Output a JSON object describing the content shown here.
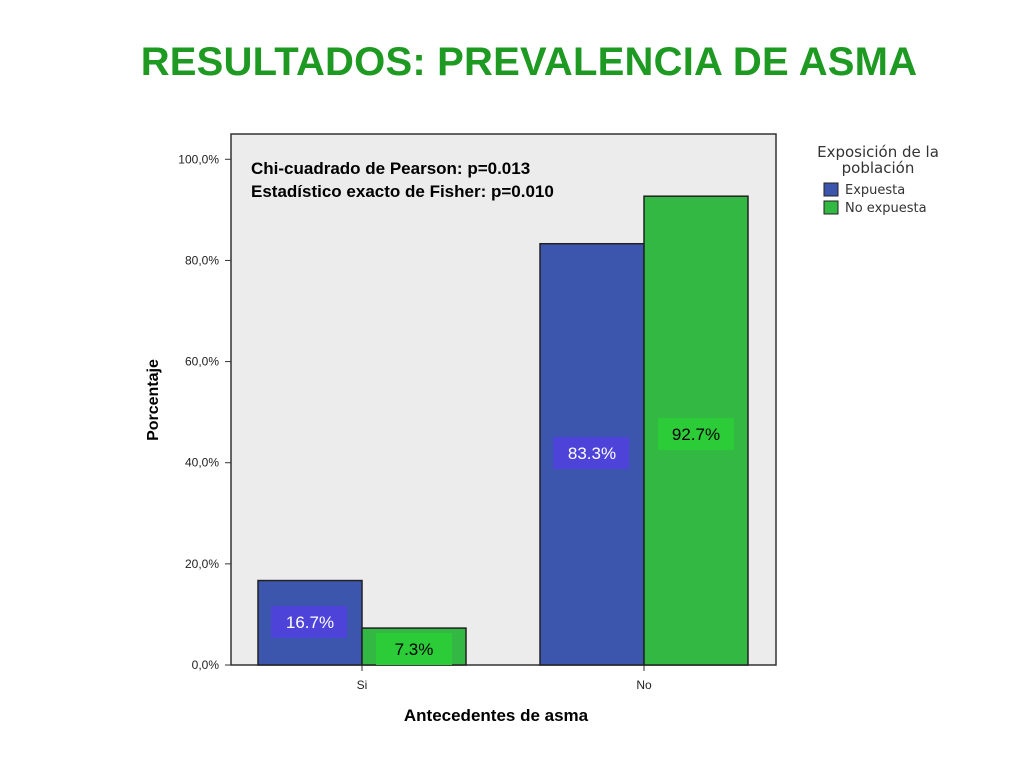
{
  "title": "RESULTADOS: PREVALENCIA DE ASMA",
  "colors": {
    "title": "#1e9a22",
    "plot_bg": "#ececec",
    "expuesta": "#3c56ad",
    "no_expuesta": "#33b843",
    "label_expuesta_bg": "#4e43d8",
    "label_no_expuesta_bg": "#2ccc38"
  },
  "chart_data": {
    "type": "bar",
    "categories": [
      "Si",
      "No"
    ],
    "series": [
      {
        "name": "Expuesta",
        "values": [
          16.7,
          83.3
        ],
        "labels": [
          "16.7%",
          "83.3%"
        ]
      },
      {
        "name": "No expuesta",
        "values": [
          7.3,
          92.7
        ],
        "labels": [
          "7.3%",
          "92.7%"
        ]
      }
    ],
    "xlabel": "Antecedentes de asma",
    "ylabel": "Porcentaje",
    "ylim": [
      0,
      105
    ],
    "yticks": [
      0,
      20,
      40,
      60,
      80,
      100
    ],
    "ytick_labels": [
      "0,0%",
      "20,0%",
      "40,0%",
      "60,0%",
      "80,0%",
      "100,0%"
    ],
    "legend": {
      "title_lines": [
        "Exposición de la",
        "población"
      ],
      "position": "right-top"
    },
    "annotations": [
      "Chi-cuadrado de Pearson: p=0.013",
      "Estadístico exacto de Fisher: p=0.010"
    ],
    "grid": false
  }
}
